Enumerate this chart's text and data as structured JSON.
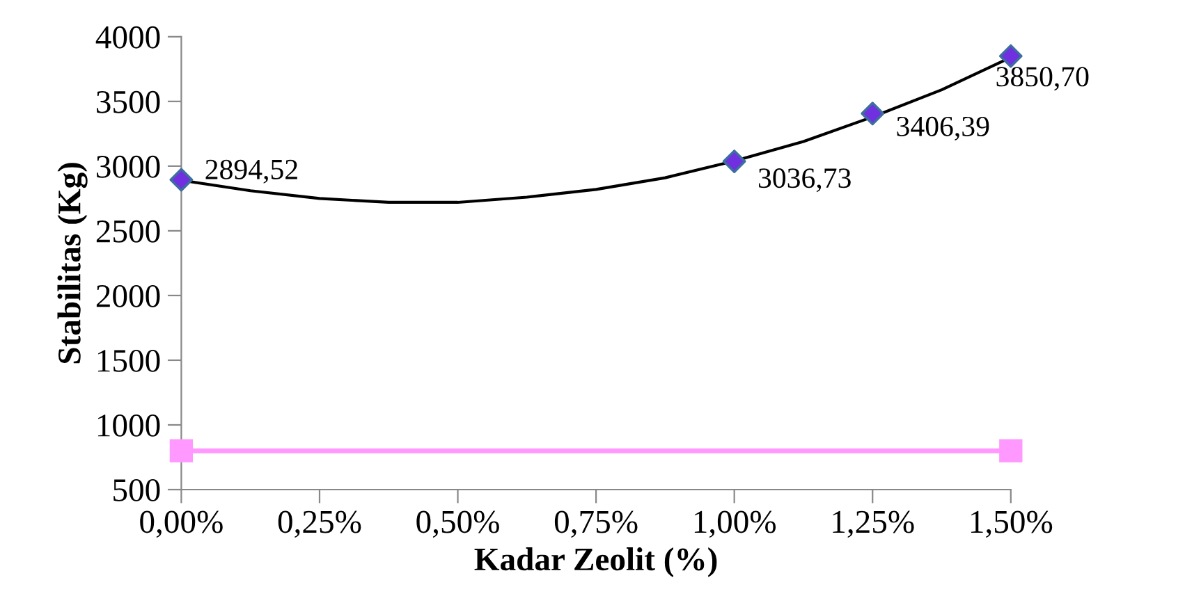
{
  "chart_data": {
    "type": "scatter",
    "xlabel": "Kadar Zeolit (%)",
    "ylabel": "Stabilitas (Kg)",
    "xlim": [
      0,
      1.5
    ],
    "ylim": [
      500,
      4000
    ],
    "xticks": [
      {
        "value": 0,
        "label": "0,00%"
      },
      {
        "value": 0.25,
        "label": "0,25%"
      },
      {
        "value": 0.5,
        "label": "0,50%"
      },
      {
        "value": 0.75,
        "label": "0,75%"
      },
      {
        "value": 1.0,
        "label": "1,00%"
      },
      {
        "value": 1.25,
        "label": "1,25%"
      },
      {
        "value": 1.5,
        "label": "1,50%"
      }
    ],
    "yticks": [
      500,
      1000,
      1500,
      2000,
      2500,
      3000,
      3500,
      4000
    ],
    "grid": false,
    "series": [
      {
        "type": "line",
        "color": "#ff99ff",
        "marker": "square",
        "x": [
          0,
          1.5
        ],
        "values": [
          800,
          800
        ]
      },
      {
        "type": "line",
        "color": "#000000",
        "marker": "none",
        "x": [
          0,
          0.125,
          0.25,
          0.375,
          0.5,
          0.625,
          0.75,
          0.875,
          1.0,
          1.125,
          1.25,
          1.375,
          1.5
        ],
        "values": [
          2890,
          2810,
          2750,
          2720,
          2720,
          2760,
          2820,
          2910,
          3040,
          3190,
          3380,
          3590,
          3840
        ]
      },
      {
        "color": "#7030e0",
        "marker": "diamond",
        "x": [
          0,
          1.0,
          1.25,
          1.5
        ],
        "values": [
          2894.52,
          3036.73,
          3406.39,
          3850.7
        ],
        "value_labels": [
          "2894,52",
          "3036,73",
          "3406,39",
          "3850,70"
        ]
      }
    ]
  }
}
